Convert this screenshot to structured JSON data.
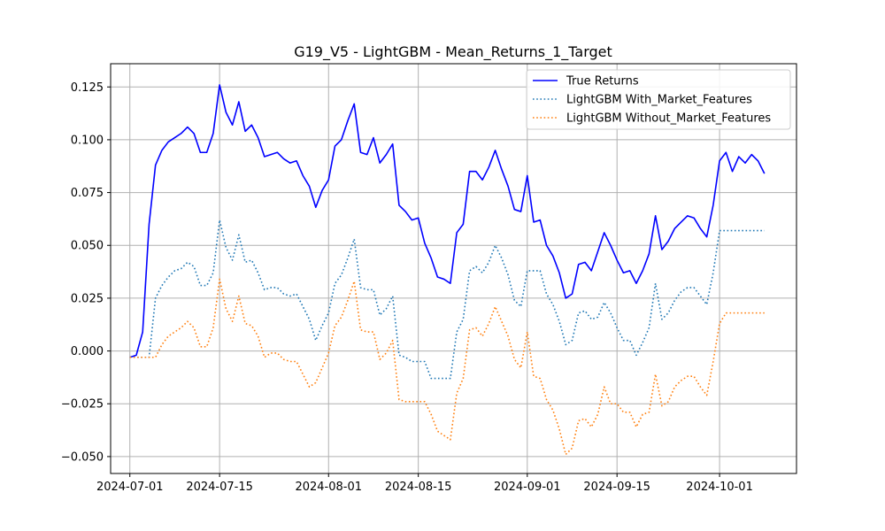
{
  "chart_data": {
    "type": "line",
    "title": "G19_V5 - LightGBM - Mean_Returns_1_Target",
    "xlabel": "",
    "ylabel": "",
    "x_start": "2024-07-01",
    "x_end": "2024-10-07",
    "xlim": [
      "2024-06-28",
      "2024-10-13"
    ],
    "ylim": [
      -0.058,
      0.136
    ],
    "grid": true,
    "legend_position": "top-right",
    "x_ticks": [
      "2024-07-01",
      "2024-07-15",
      "2024-08-01",
      "2024-08-15",
      "2024-09-01",
      "2024-09-15",
      "2024-10-01"
    ],
    "y_ticks": [
      -0.05,
      -0.025,
      0.0,
      0.025,
      0.05,
      0.075,
      0.1,
      0.125
    ],
    "y_tick_labels": [
      "−0.050",
      "−0.025",
      "0.000",
      "0.025",
      "0.050",
      "0.075",
      "0.100",
      "0.125"
    ],
    "series": [
      {
        "name": "True Returns",
        "color": "#0000ff",
        "style": "solid",
        "values": [
          -0.003,
          -0.002,
          0.009,
          0.06,
          0.088,
          0.095,
          0.099,
          0.101,
          0.103,
          0.106,
          0.103,
          0.094,
          0.094,
          0.103,
          0.126,
          0.113,
          0.107,
          0.118,
          0.104,
          0.107,
          0.101,
          0.092,
          0.093,
          0.094,
          0.091,
          0.089,
          0.09,
          0.083,
          0.078,
          0.068,
          0.076,
          0.081,
          0.097,
          0.1,
          0.109,
          0.117,
          0.094,
          0.093,
          0.101,
          0.089,
          0.093,
          0.098,
          0.069,
          0.066,
          0.062,
          0.063,
          0.051,
          0.044,
          0.035,
          0.034,
          0.032,
          0.056,
          0.06,
          0.085,
          0.085,
          0.081,
          0.087,
          0.095,
          0.086,
          0.078,
          0.067,
          0.066,
          0.083,
          0.061,
          0.062,
          0.05,
          0.045,
          0.037,
          0.025,
          0.027,
          0.041,
          0.042,
          0.038,
          0.047,
          0.056,
          0.05,
          0.043,
          0.037,
          0.038,
          0.032,
          0.038,
          0.046,
          0.064,
          0.048,
          0.052,
          0.058,
          0.061,
          0.064,
          0.063,
          0.058,
          0.054,
          0.069,
          0.09,
          0.094,
          0.085,
          0.092,
          0.089,
          0.093,
          0.09,
          0.084
        ]
      },
      {
        "name": "LightGBM With_Market_Features",
        "color": "#1f77b4",
        "style": "dotted",
        "values": [
          -0.003,
          -0.003,
          -0.003,
          -0.003,
          0.025,
          0.031,
          0.035,
          0.038,
          0.039,
          0.042,
          0.04,
          0.031,
          0.031,
          0.037,
          0.062,
          0.049,
          0.043,
          0.055,
          0.042,
          0.043,
          0.037,
          0.029,
          0.03,
          0.03,
          0.027,
          0.026,
          0.027,
          0.021,
          0.015,
          0.005,
          0.012,
          0.018,
          0.032,
          0.036,
          0.044,
          0.053,
          0.03,
          0.029,
          0.029,
          0.017,
          0.02,
          0.026,
          -0.002,
          -0.003,
          -0.005,
          -0.005,
          -0.005,
          -0.013,
          -0.013,
          -0.013,
          -0.013,
          0.009,
          0.015,
          0.038,
          0.04,
          0.037,
          0.042,
          0.05,
          0.044,
          0.036,
          0.024,
          0.021,
          0.038,
          0.038,
          0.038,
          0.027,
          0.022,
          0.014,
          0.003,
          0.005,
          0.018,
          0.019,
          0.015,
          0.016,
          0.023,
          0.018,
          0.011,
          0.005,
          0.005,
          -0.002,
          0.004,
          0.011,
          0.032,
          0.015,
          0.018,
          0.024,
          0.028,
          0.03,
          0.03,
          0.026,
          0.022,
          0.037,
          0.057,
          0.057,
          0.057,
          0.057,
          0.057,
          0.057,
          0.057,
          0.057
        ]
      },
      {
        "name": "LightGBM Without_Market_Features",
        "color": "#ff7f0e",
        "style": "dotted",
        "values": [
          -0.003,
          -0.003,
          -0.003,
          -0.003,
          -0.003,
          0.003,
          0.007,
          0.009,
          0.011,
          0.014,
          0.011,
          0.002,
          0.002,
          0.011,
          0.034,
          0.02,
          0.014,
          0.026,
          0.013,
          0.012,
          0.007,
          -0.003,
          -0.001,
          -0.001,
          -0.004,
          -0.005,
          -0.005,
          -0.011,
          -0.017,
          -0.015,
          -0.008,
          -0.001,
          0.012,
          0.016,
          0.024,
          0.033,
          0.01,
          0.009,
          0.009,
          -0.004,
          -0.001,
          0.005,
          -0.023,
          -0.024,
          -0.024,
          -0.024,
          -0.024,
          -0.03,
          -0.038,
          -0.04,
          -0.042,
          -0.02,
          -0.013,
          0.01,
          0.011,
          0.007,
          0.013,
          0.021,
          0.014,
          0.007,
          -0.004,
          -0.008,
          0.009,
          -0.012,
          -0.013,
          -0.023,
          -0.028,
          -0.037,
          -0.049,
          -0.046,
          -0.033,
          -0.032,
          -0.036,
          -0.03,
          -0.017,
          -0.025,
          -0.025,
          -0.029,
          -0.029,
          -0.036,
          -0.03,
          -0.029,
          -0.011,
          -0.026,
          -0.024,
          -0.017,
          -0.014,
          -0.012,
          -0.012,
          -0.017,
          -0.021,
          -0.005,
          0.013,
          0.018,
          0.018,
          0.018,
          0.018,
          0.018,
          0.018,
          0.018
        ]
      }
    ]
  }
}
